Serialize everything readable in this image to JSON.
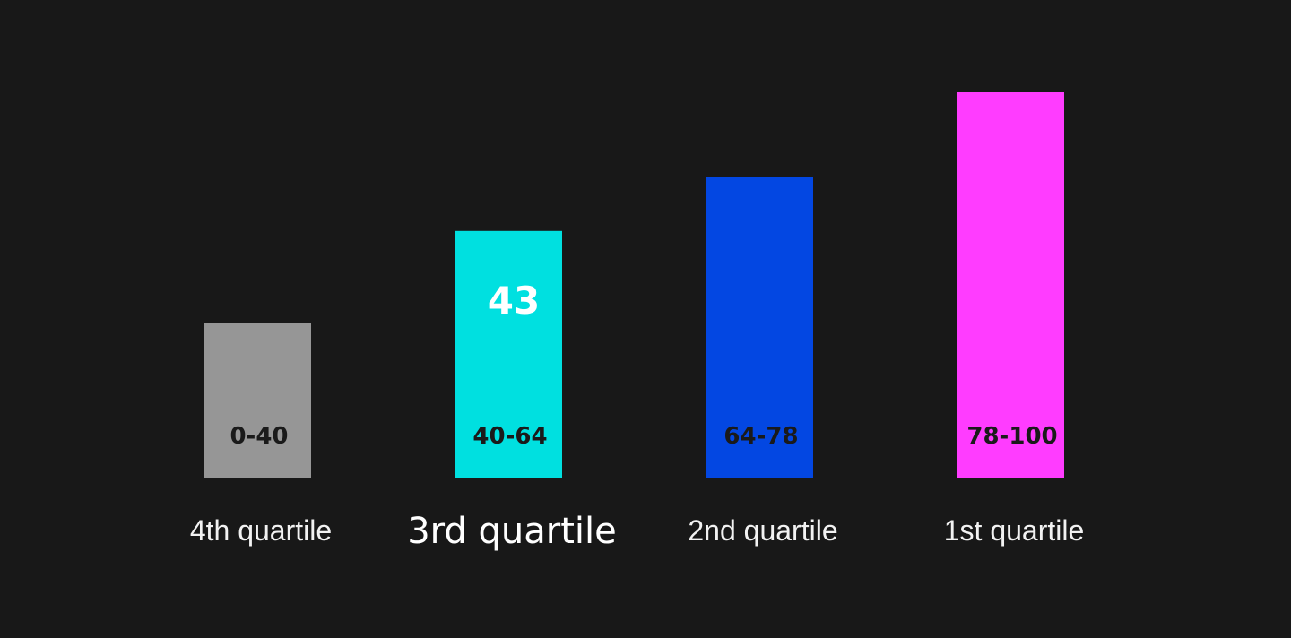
{
  "chart_data": {
    "type": "bar",
    "categories": [
      "4th quartile",
      "3rd quartile",
      "2nd quartile",
      "1st quartile"
    ],
    "ranges": [
      "0-40",
      "40-64",
      "64-78",
      "78-100"
    ],
    "values": [
      40,
      64,
      78,
      100
    ],
    "colors": [
      "#969696",
      "#00e0e0",
      "#0347e2",
      "#ff3cff"
    ],
    "marker": {
      "category": "3rd quartile",
      "value": 43,
      "label": "43",
      "color": "#00e0e0"
    },
    "ylim": [
      0,
      100
    ],
    "grid": false,
    "legend": "none"
  }
}
